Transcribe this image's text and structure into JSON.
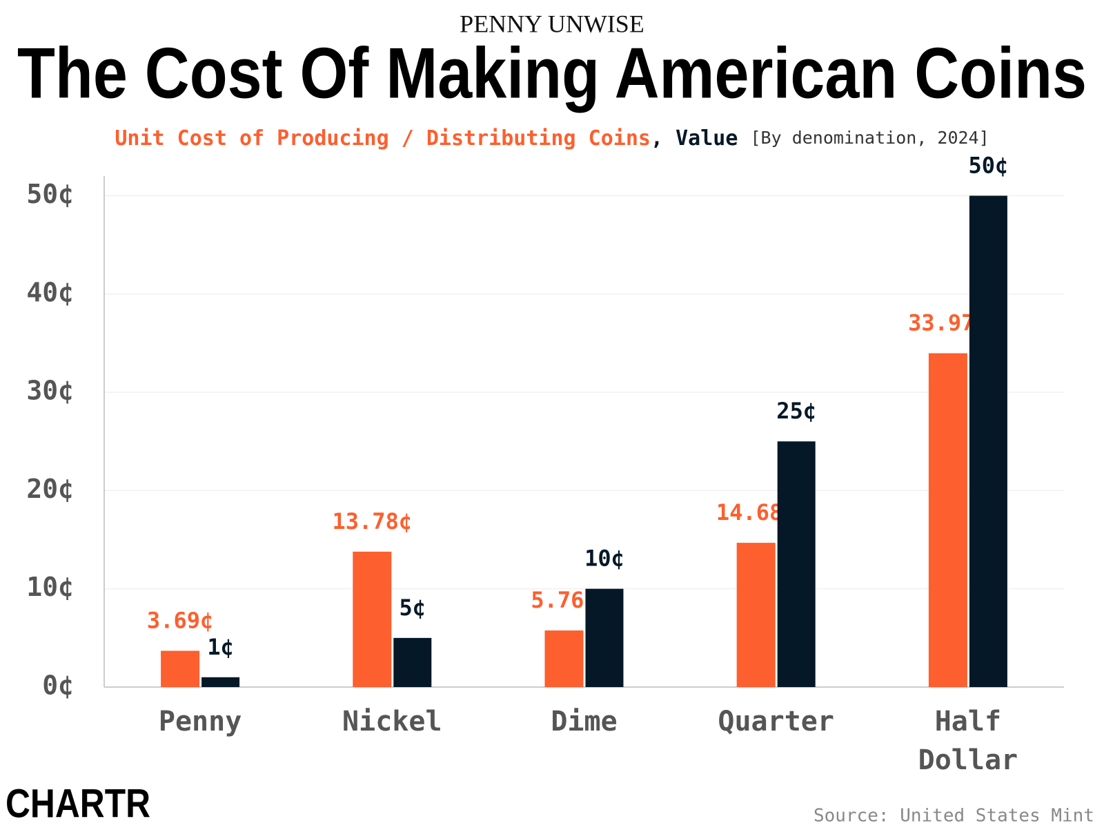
{
  "chart_data": {
    "type": "bar",
    "kicker": "PENNY UNWISE",
    "title": "The Cost Of Making American Coins",
    "subtitle_separator": ",",
    "subtitle_note": "[By denomination, 2024]",
    "categories": [
      "Penny",
      "Nickel",
      "Dime",
      "Quarter",
      "Half Dollar"
    ],
    "series": [
      {
        "name": "Unit Cost of Producing / Distributing Coins",
        "color": "#fd5f2e",
        "values": [
          3.69,
          13.78,
          5.76,
          14.68,
          33.97
        ],
        "value_labels": [
          "3.69¢",
          "13.78¢",
          "5.76¢",
          "14.68¢",
          "33.97¢"
        ]
      },
      {
        "name": "Value",
        "color": "#051827",
        "values": [
          1,
          5,
          10,
          25,
          50
        ],
        "value_labels": [
          "1¢",
          "5¢",
          "10¢",
          "25¢",
          "50¢"
        ]
      }
    ],
    "ylim": [
      0,
      52
    ],
    "yticks": [
      {
        "value": 0,
        "label": "0¢"
      },
      {
        "value": 10,
        "label": "10¢"
      },
      {
        "value": 20,
        "label": "20¢"
      },
      {
        "value": 30,
        "label": "30¢"
      },
      {
        "value": 40,
        "label": "40¢"
      },
      {
        "value": 50,
        "label": "50¢"
      }
    ],
    "grid": true,
    "source": "Source: United States Mint",
    "brand": "CHARTR"
  }
}
